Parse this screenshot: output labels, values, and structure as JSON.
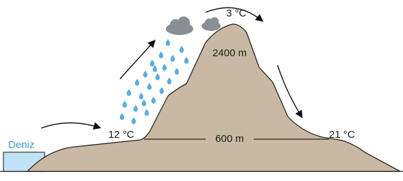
{
  "labels": {
    "sea": "Deniz",
    "low_left_temp": "12 °C",
    "low_altitude": "600 m",
    "low_right_temp": "21 °C",
    "peak_altitude": "2400 m",
    "peak_temp": "3 °C"
  }
}
